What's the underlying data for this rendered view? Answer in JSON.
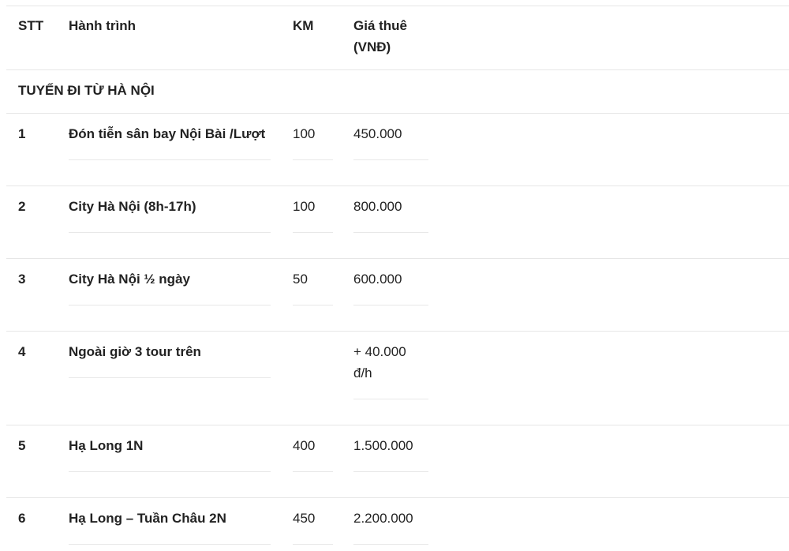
{
  "table": {
    "headers": [
      "STT",
      "Hành trình",
      "KM",
      "Giá thuê (VNĐ)"
    ],
    "header_price_lines": [
      "Giá thuê",
      "(VNĐ)"
    ],
    "section_title": "TUYẾN ĐI TỪ HÀ NỘI",
    "rows": [
      {
        "stt": "1",
        "route": "Đón tiễn sân bay Nội Bài /Lượt",
        "km": "100",
        "price": "450.000"
      },
      {
        "stt": "2",
        "route": "City Hà Nội (8h-17h)",
        "km": "100",
        "price": "800.000"
      },
      {
        "stt": "3",
        "route": "City Hà Nội ½ ngày",
        "km": "50",
        "price": "600.000"
      },
      {
        "stt": "4",
        "route": "Ngoài giờ 3 tour trên",
        "km": "",
        "price": "+ 40.000",
        "price_line2": "đ/h"
      },
      {
        "stt": "5",
        "route": "Hạ Long 1N",
        "km": "400",
        "price": "1.500.000"
      },
      {
        "stt": "6",
        "route": "Hạ Long – Tuần Châu 2N",
        "km": "450",
        "price": "2.200.000"
      }
    ]
  }
}
